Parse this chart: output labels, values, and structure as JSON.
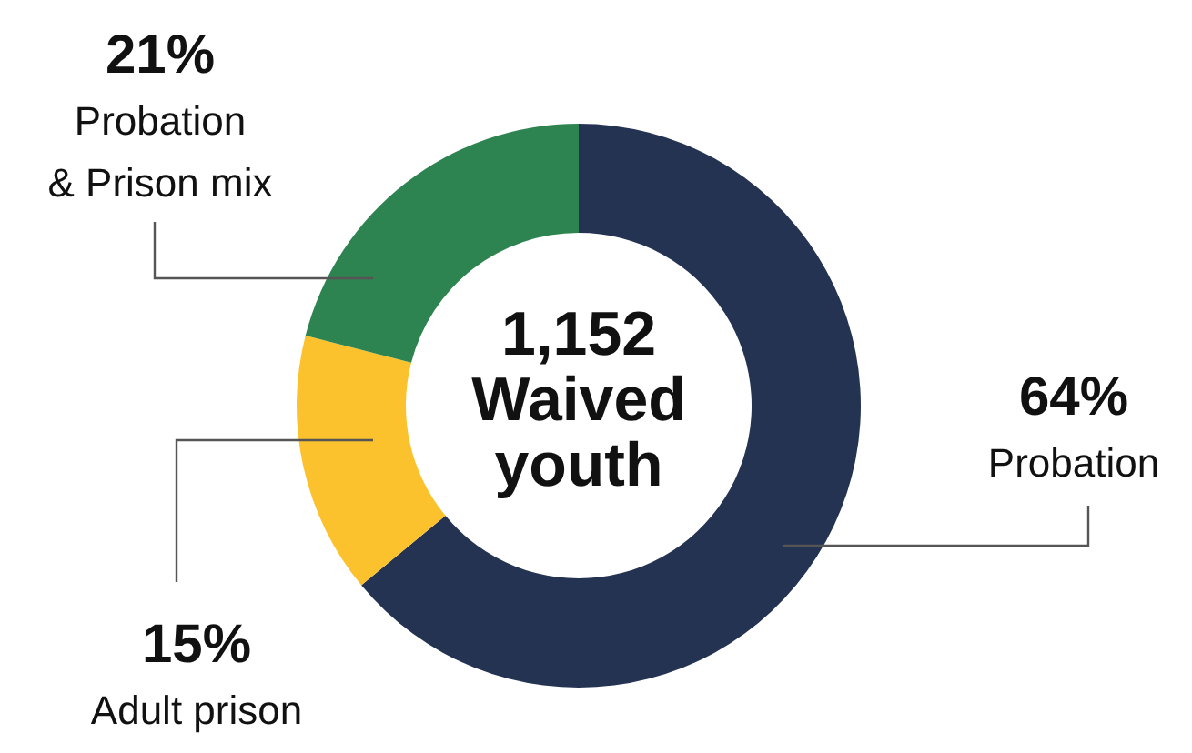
{
  "chart_data": {
    "type": "donut",
    "title": "1,152 Waived youth",
    "categories": [
      "Probation",
      "Adult prison",
      "Probation & Prison mix"
    ],
    "values": [
      64,
      15,
      21
    ],
    "colors": [
      "#243352",
      "#fcc22d",
      "#2e8450"
    ],
    "value_labels": [
      "64%",
      "15%",
      "21%"
    ]
  }
}
